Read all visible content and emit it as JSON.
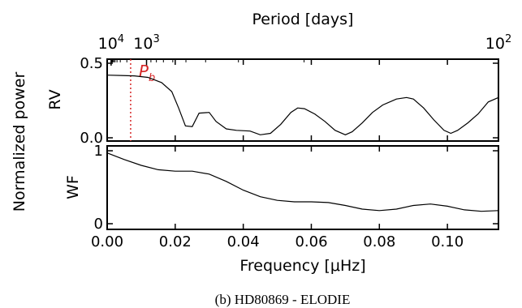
{
  "chart_data": {
    "type": "line",
    "title_top_axis": "Period [days]",
    "top_tick_labels": [
      {
        "label": "10",
        "sup": "4",
        "value_days": 10000
      },
      {
        "label": "10",
        "sup": "3",
        "value_days": 1000
      },
      {
        "label": "10",
        "sup": "2",
        "value_days": 100
      }
    ],
    "xlabel": "Frequency [μHz]",
    "x_tick_labels": [
      "0.00",
      "0.02",
      "0.04",
      "0.06",
      "0.08",
      "0.10"
    ],
    "xlim": [
      0,
      0.115
    ],
    "ylabel_shared": "Normalized power",
    "marker": {
      "label": "P",
      "subscript": "b",
      "frequency": 0.0069,
      "color": "#d62728"
    },
    "panels": [
      {
        "name": "RV",
        "ylabel": "RV",
        "ylim": [
          0,
          0.5
        ],
        "y_tick_labels": [
          "0.0",
          "0.5"
        ],
        "y_ticks": [
          0,
          0.5
        ],
        "series": {
          "x": [
            0,
            0.004,
            0.008,
            0.012,
            0.016,
            0.019,
            0.021,
            0.023,
            0.025,
            0.027,
            0.03,
            0.032,
            0.035,
            0.038,
            0.042,
            0.045,
            0.048,
            0.051,
            0.054,
            0.056,
            0.058,
            0.061,
            0.064,
            0.067,
            0.07,
            0.072,
            0.075,
            0.078,
            0.081,
            0.085,
            0.088,
            0.09,
            0.093,
            0.096,
            0.099,
            0.101,
            0.103,
            0.106,
            0.109,
            0.112,
            0.115
          ],
          "y": [
            0.42,
            0.418,
            0.415,
            0.405,
            0.37,
            0.31,
            0.2,
            0.08,
            0.075,
            0.165,
            0.17,
            0.11,
            0.06,
            0.05,
            0.045,
            0.02,
            0.03,
            0.09,
            0.17,
            0.2,
            0.195,
            0.16,
            0.11,
            0.05,
            0.02,
            0.04,
            0.1,
            0.17,
            0.22,
            0.26,
            0.27,
            0.26,
            0.2,
            0.12,
            0.05,
            0.03,
            0.05,
            0.1,
            0.16,
            0.24,
            0.27
          ]
        }
      },
      {
        "name": "WF",
        "ylabel": "WF",
        "ylim": [
          0,
          1
        ],
        "y_tick_labels": [
          "0",
          "1"
        ],
        "y_ticks": [
          0,
          1
        ],
        "series": {
          "x": [
            0,
            0.005,
            0.01,
            0.015,
            0.02,
            0.025,
            0.03,
            0.035,
            0.04,
            0.045,
            0.05,
            0.055,
            0.06,
            0.065,
            0.07,
            0.075,
            0.08,
            0.085,
            0.09,
            0.095,
            0.1,
            0.105,
            0.11,
            0.115
          ],
          "y": [
            0.97,
            0.88,
            0.8,
            0.74,
            0.72,
            0.72,
            0.68,
            0.58,
            0.46,
            0.37,
            0.32,
            0.3,
            0.3,
            0.29,
            0.25,
            0.2,
            0.18,
            0.2,
            0.25,
            0.27,
            0.24,
            0.19,
            0.17,
            0.18
          ]
        }
      }
    ]
  },
  "caption": "(b) HD80869 - ELODIE"
}
